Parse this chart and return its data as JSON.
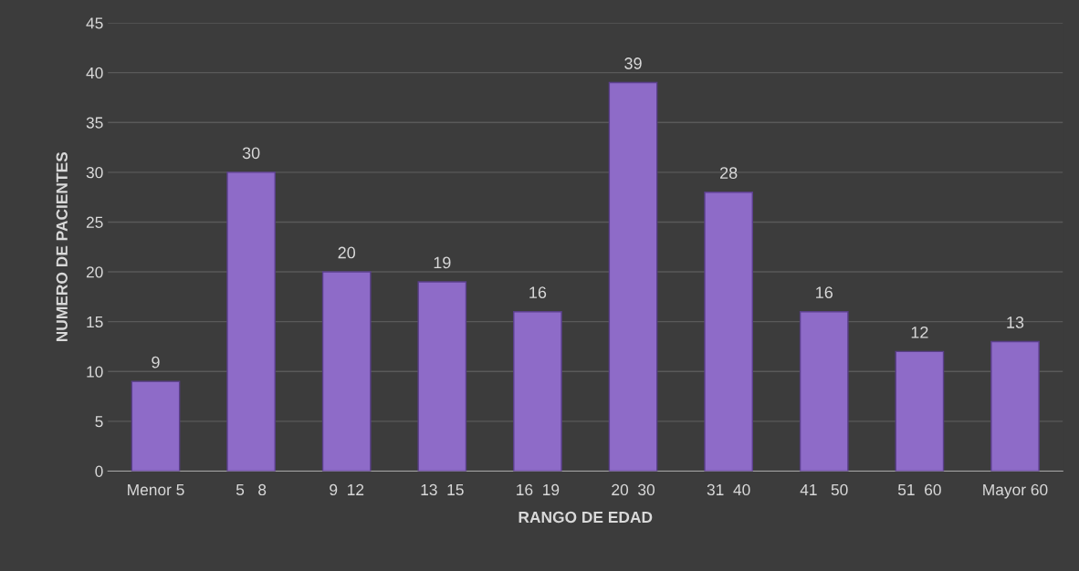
{
  "chart_data": {
    "type": "bar",
    "xlabel": "RANGO DE EDAD",
    "ylabel": "NUMERO DE PACIENTES",
    "categories": [
      "Menor 5",
      "5   8",
      "9  12",
      "13  15",
      "16  19",
      "20  30",
      "31  40",
      "41   50",
      "51  60",
      "Mayor 60"
    ],
    "values": [
      9,
      30,
      20,
      19,
      16,
      39,
      28,
      16,
      12,
      13
    ],
    "color": "#8e6bc8",
    "ylim": [
      0,
      45
    ],
    "yticks": [
      0,
      5,
      10,
      15,
      20,
      25,
      30,
      35,
      40,
      45
    ],
    "grid": "y",
    "data_labels": true
  }
}
